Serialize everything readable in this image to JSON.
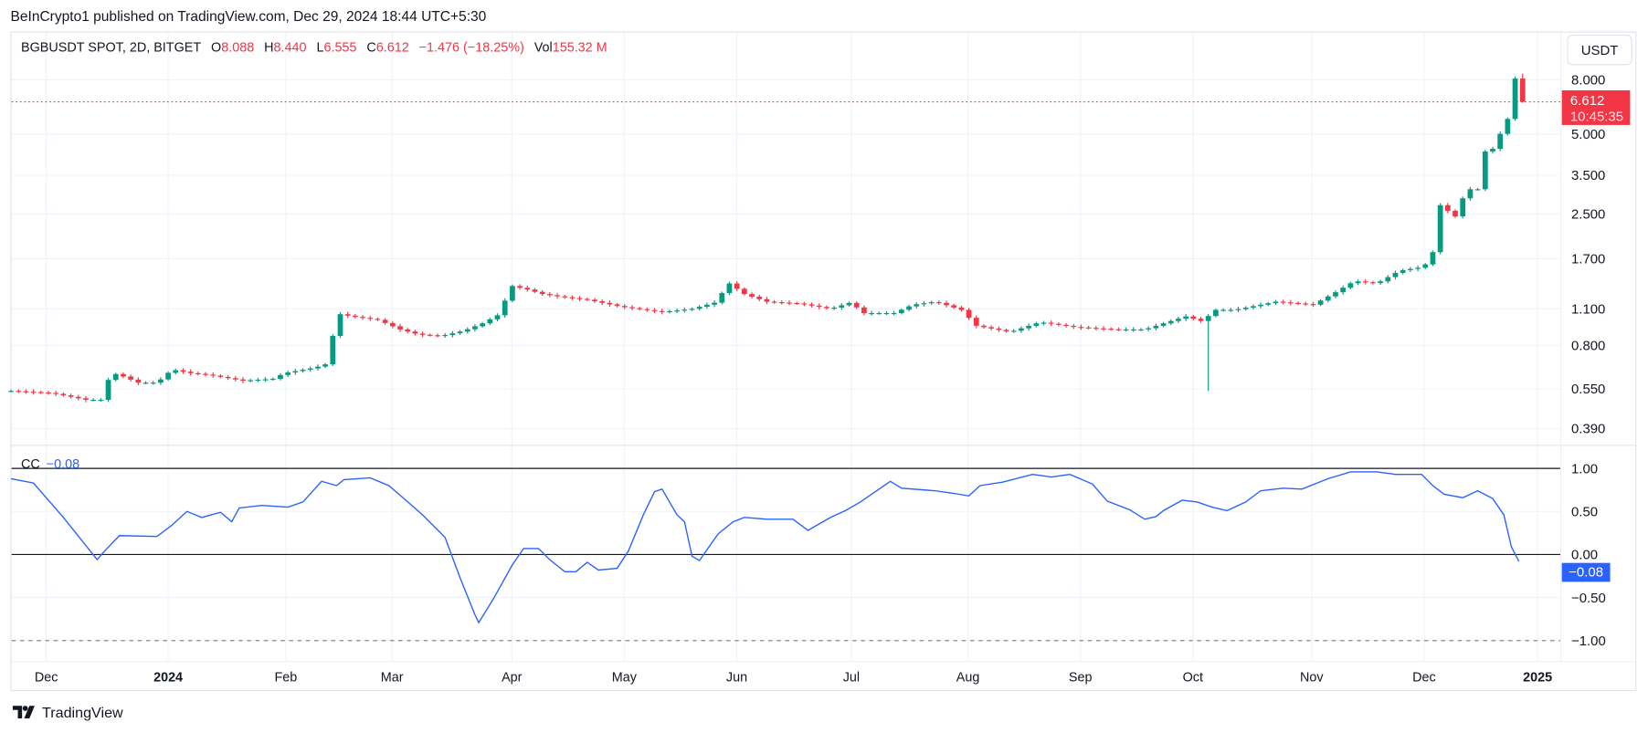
{
  "header": {
    "publish_text": "BeInCrypto1 published on TradingView.com, Dec 29, 2024 18:44 UTC+5:30"
  },
  "legend": {
    "symbol": "BGBUSDT SPOT, 2D, BITGET",
    "open_label": "O",
    "open": "8.088",
    "high_label": "H",
    "high": "8.440",
    "low_label": "L",
    "low": "6.555",
    "close_label": "C",
    "close": "6.612",
    "change": "−1.476 (−18.25%)",
    "vol_label": "Vol",
    "vol": "155.32 M"
  },
  "currency_button": "USDT",
  "last_price": {
    "value": "6.612",
    "countdown": "10:45:35"
  },
  "indicator": {
    "name": "CC",
    "value": "−0.08",
    "axis_value": "−0.08"
  },
  "footer": {
    "logo_text": "TradingView"
  },
  "colors": {
    "up": "#089981",
    "down": "#f23645",
    "cc_line": "#2962ff",
    "grid": "#f0f3fa"
  },
  "chart_data": [
    {
      "type": "candlestick",
      "title": "BGBUSDT SPOT, 2D, BITGET",
      "scale": "log",
      "y_ticks": [
        "8.000",
        "5.000",
        "3.500",
        "2.500",
        "1.700",
        "1.100",
        "0.800",
        "0.550",
        "0.390"
      ],
      "x_ticks": [
        "Dec",
        "2024",
        "Feb",
        "Mar",
        "Apr",
        "May",
        "Jun",
        "Jul",
        "Aug",
        "Sep",
        "Oct",
        "Nov",
        "Dec",
        "2025"
      ],
      "grid": true,
      "close_path": [
        [
          "2023-11-20",
          0.54
        ],
        [
          "2023-12-01",
          0.53
        ],
        [
          "2023-12-10",
          0.5
        ],
        [
          "2023-12-14",
          0.5
        ],
        [
          "2023-12-15",
          0.56
        ],
        [
          "2023-12-17",
          0.63
        ],
        [
          "2023-12-19",
          0.62
        ],
        [
          "2023-12-24",
          0.58
        ],
        [
          "2023-12-29",
          0.58
        ],
        [
          "2024-01-02",
          0.65
        ],
        [
          "2024-01-07",
          0.63
        ],
        [
          "2024-01-12",
          0.62
        ],
        [
          "2024-01-21",
          0.59
        ],
        [
          "2024-01-29",
          0.6
        ],
        [
          "2024-02-01",
          0.63
        ],
        [
          "2024-02-09",
          0.66
        ],
        [
          "2024-02-12",
          0.68
        ],
        [
          "2024-02-14",
          0.87
        ],
        [
          "2024-02-16",
          1.05
        ],
        [
          "2024-02-19",
          1.03
        ],
        [
          "2024-02-26",
          1.0
        ],
        [
          "2024-03-03",
          0.92
        ],
        [
          "2024-03-08",
          0.88
        ],
        [
          "2024-03-14",
          0.87
        ],
        [
          "2024-03-20",
          0.91
        ],
        [
          "2024-03-25",
          0.97
        ],
        [
          "2024-03-29",
          1.04
        ],
        [
          "2024-04-02",
          1.34
        ],
        [
          "2024-04-06",
          1.3
        ],
        [
          "2024-04-10",
          1.25
        ],
        [
          "2024-04-15",
          1.22
        ],
        [
          "2024-04-22",
          1.19
        ],
        [
          "2024-05-01",
          1.12
        ],
        [
          "2024-05-12",
          1.07
        ],
        [
          "2024-05-20",
          1.1
        ],
        [
          "2024-05-26",
          1.16
        ],
        [
          "2024-05-30",
          1.37
        ],
        [
          "2024-06-03",
          1.25
        ],
        [
          "2024-06-09",
          1.17
        ],
        [
          "2024-06-18",
          1.15
        ],
        [
          "2024-06-26",
          1.1
        ],
        [
          "2024-07-02",
          1.17
        ],
        [
          "2024-07-04",
          1.06
        ],
        [
          "2024-07-13",
          1.06
        ],
        [
          "2024-07-18",
          1.14
        ],
        [
          "2024-07-24",
          1.17
        ],
        [
          "2024-07-31",
          1.09
        ],
        [
          "2024-08-04",
          0.95
        ],
        [
          "2024-08-13",
          0.9
        ],
        [
          "2024-08-21",
          0.98
        ],
        [
          "2024-08-30",
          0.94
        ],
        [
          "2024-09-10",
          0.92
        ],
        [
          "2024-09-18",
          0.92
        ],
        [
          "2024-09-24",
          0.98
        ],
        [
          "2024-09-29",
          1.03
        ],
        [
          "2024-10-04",
          0.98
        ],
        [
          "2024-10-06",
          1.09
        ],
        [
          "2024-10-12",
          1.09
        ],
        [
          "2024-10-19",
          1.14
        ],
        [
          "2024-10-23",
          1.17
        ],
        [
          "2024-11-02",
          1.14
        ],
        [
          "2024-11-08",
          1.27
        ],
        [
          "2024-11-13",
          1.4
        ],
        [
          "2024-11-19",
          1.37
        ],
        [
          "2024-11-25",
          1.53
        ],
        [
          "2024-11-30",
          1.57
        ],
        [
          "2024-12-03",
          1.64
        ],
        [
          "2024-12-05",
          1.97
        ],
        [
          "2024-12-06",
          2.7
        ],
        [
          "2024-12-10",
          2.45
        ],
        [
          "2024-12-13",
          3.1
        ],
        [
          "2024-12-16",
          3.1
        ],
        [
          "2024-12-18",
          4.3
        ],
        [
          "2024-12-20",
          4.4
        ],
        [
          "2024-12-24",
          5.7
        ],
        [
          "2024-12-26",
          8.088
        ],
        [
          "2024-12-28",
          6.612
        ]
      ],
      "notable_wicks": [
        {
          "date": "2024-10-06",
          "low": 0.54
        }
      ],
      "last_candle": {
        "date": "2024-12-28",
        "open": 8.088,
        "high": 8.44,
        "low": 6.555,
        "close": 6.612
      }
    },
    {
      "type": "line",
      "name": "CC",
      "y_ticks": [
        "1.00",
        "0.50",
        "0.00",
        "−0.50",
        "−1.00"
      ],
      "ylim": [
        -1,
        1
      ],
      "reference_lines": [
        1.0,
        0.0,
        -1.0
      ],
      "points": [
        [
          "2023-11-20",
          0.88
        ],
        [
          "2023-11-26",
          0.83
        ],
        [
          "2023-12-04",
          0.43
        ],
        [
          "2023-12-09",
          0.16
        ],
        [
          "2023-12-13",
          -0.06
        ],
        [
          "2023-12-15",
          0.04
        ],
        [
          "2023-12-19",
          0.22
        ],
        [
          "2023-12-29",
          0.21
        ],
        [
          "2024-01-02",
          0.34
        ],
        [
          "2024-01-06",
          0.5
        ],
        [
          "2024-01-10",
          0.43
        ],
        [
          "2024-01-15",
          0.49
        ],
        [
          "2024-01-18",
          0.38
        ],
        [
          "2024-01-20",
          0.54
        ],
        [
          "2024-01-26",
          0.57
        ],
        [
          "2024-02-02",
          0.55
        ],
        [
          "2024-02-06",
          0.61
        ],
        [
          "2024-02-11",
          0.85
        ],
        [
          "2024-02-15",
          0.8
        ],
        [
          "2024-02-17",
          0.87
        ],
        [
          "2024-02-24",
          0.89
        ],
        [
          "2024-02-29",
          0.8
        ],
        [
          "2024-03-04",
          0.65
        ],
        [
          "2024-03-09",
          0.46
        ],
        [
          "2024-03-15",
          0.2
        ],
        [
          "2024-03-19",
          -0.27
        ],
        [
          "2024-03-23",
          -0.7
        ],
        [
          "2024-03-24",
          -0.79
        ],
        [
          "2024-03-28",
          -0.51
        ],
        [
          "2024-04-02",
          -0.12
        ],
        [
          "2024-04-05",
          0.07
        ],
        [
          "2024-04-09",
          0.07
        ],
        [
          "2024-04-12",
          -0.06
        ],
        [
          "2024-04-16",
          -0.2
        ],
        [
          "2024-04-19",
          -0.2
        ],
        [
          "2024-04-22",
          -0.09
        ],
        [
          "2024-04-25",
          -0.18
        ],
        [
          "2024-04-30",
          -0.16
        ],
        [
          "2024-05-03",
          0.04
        ],
        [
          "2024-05-07",
          0.46
        ],
        [
          "2024-05-10",
          0.73
        ],
        [
          "2024-05-12",
          0.76
        ],
        [
          "2024-05-16",
          0.46
        ],
        [
          "2024-05-18",
          0.38
        ],
        [
          "2024-05-20",
          -0.02
        ],
        [
          "2024-05-22",
          -0.07
        ],
        [
          "2024-05-27",
          0.24
        ],
        [
          "2024-05-31",
          0.38
        ],
        [
          "2024-06-03",
          0.43
        ],
        [
          "2024-06-09",
          0.41
        ],
        [
          "2024-06-16",
          0.41
        ],
        [
          "2024-06-20",
          0.28
        ],
        [
          "2024-06-26",
          0.43
        ],
        [
          "2024-06-30",
          0.51
        ],
        [
          "2024-07-04",
          0.61
        ],
        [
          "2024-07-07",
          0.7
        ],
        [
          "2024-07-12",
          0.85
        ],
        [
          "2024-07-15",
          0.77
        ],
        [
          "2024-07-24",
          0.74
        ],
        [
          "2024-07-29",
          0.71
        ],
        [
          "2024-08-02",
          0.68
        ],
        [
          "2024-08-05",
          0.8
        ],
        [
          "2024-08-11",
          0.84
        ],
        [
          "2024-08-19",
          0.93
        ],
        [
          "2024-08-24",
          0.9
        ],
        [
          "2024-08-29",
          0.93
        ],
        [
          "2024-09-04",
          0.82
        ],
        [
          "2024-09-08",
          0.62
        ],
        [
          "2024-09-14",
          0.52
        ],
        [
          "2024-09-18",
          0.41
        ],
        [
          "2024-09-21",
          0.44
        ],
        [
          "2024-09-23",
          0.51
        ],
        [
          "2024-09-28",
          0.63
        ],
        [
          "2024-10-02",
          0.61
        ],
        [
          "2024-10-06",
          0.55
        ],
        [
          "2024-10-10",
          0.51
        ],
        [
          "2024-10-15",
          0.61
        ],
        [
          "2024-10-19",
          0.74
        ],
        [
          "2024-10-25",
          0.77
        ],
        [
          "2024-10-30",
          0.76
        ],
        [
          "2024-11-06",
          0.88
        ],
        [
          "2024-11-12",
          0.96
        ],
        [
          "2024-11-19",
          0.96
        ],
        [
          "2024-11-24",
          0.93
        ],
        [
          "2024-12-01",
          0.93
        ],
        [
          "2024-12-04",
          0.8
        ],
        [
          "2024-12-07",
          0.7
        ],
        [
          "2024-12-12",
          0.66
        ],
        [
          "2024-12-16",
          0.74
        ],
        [
          "2024-12-20",
          0.65
        ],
        [
          "2024-12-23",
          0.46
        ],
        [
          "2024-12-25",
          0.09
        ],
        [
          "2024-12-27",
          -0.08
        ]
      ]
    }
  ]
}
